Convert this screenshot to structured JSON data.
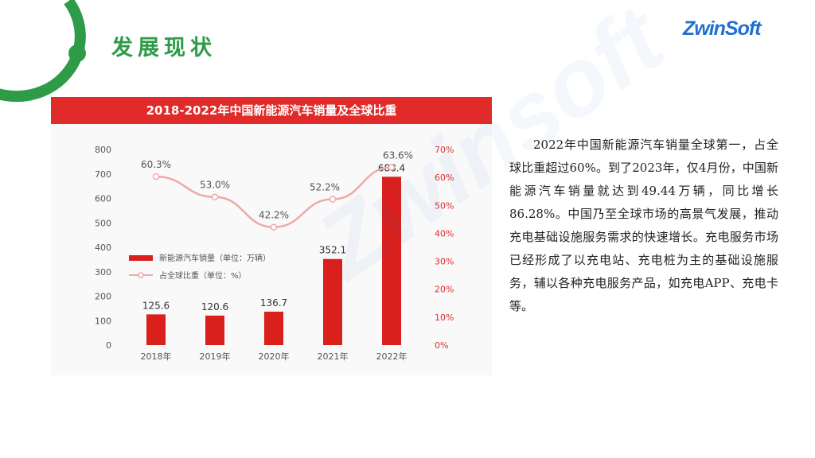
{
  "page": {
    "title": "发展现状",
    "logo": "ZwinSoft",
    "description": "2022年中国新能源汽车销量全球第一，占全球比重超过60%。到了2023年，仅4月份，中国新能源汽车销量就达到49.44万辆，同比增长86.28%。中国乃至全球市场的高景气发展，推动充电基础设施服务需求的快速增长。充电服务市场已经形成了以充电站、充电桩为主的基础设施服务，辅以各种充电服务产品，如充电APP、充电卡等。"
  },
  "chart_data": {
    "type": "bar",
    "title": "2018-2022年中国新能源汽车销量及全球比重",
    "categories": [
      "2018年",
      "2019年",
      "2020年",
      "2021年",
      "2022年"
    ],
    "series": [
      {
        "name": "新能源汽车销量（单位：万辆）",
        "type": "bar",
        "values": [
          125.6,
          120.6,
          136.7,
          352.1,
          688.4
        ],
        "color": "#d9201c",
        "axis": "left"
      },
      {
        "name": "占全球比重（单位：%）",
        "type": "line",
        "values": [
          60.3,
          53.0,
          42.2,
          52.2,
          63.6
        ],
        "color": "#f0a8a8",
        "axis": "right"
      }
    ],
    "bar_labels": [
      "125.6",
      "120.6",
      "136.7",
      "352.1",
      "688.4"
    ],
    "line_labels": [
      "60.3%",
      "53.0%",
      "42.2%",
      "52.2%",
      "63.6%"
    ],
    "left_ticks": [
      "0",
      "100",
      "200",
      "300",
      "400",
      "500",
      "600",
      "700",
      "800"
    ],
    "right_ticks": [
      "0%",
      "10%",
      "20%",
      "30%",
      "40%",
      "50%",
      "60%",
      "70%"
    ],
    "ylim": [
      0,
      800
    ],
    "y2lim": [
      0,
      70
    ],
    "legend_position": "middle-left"
  }
}
